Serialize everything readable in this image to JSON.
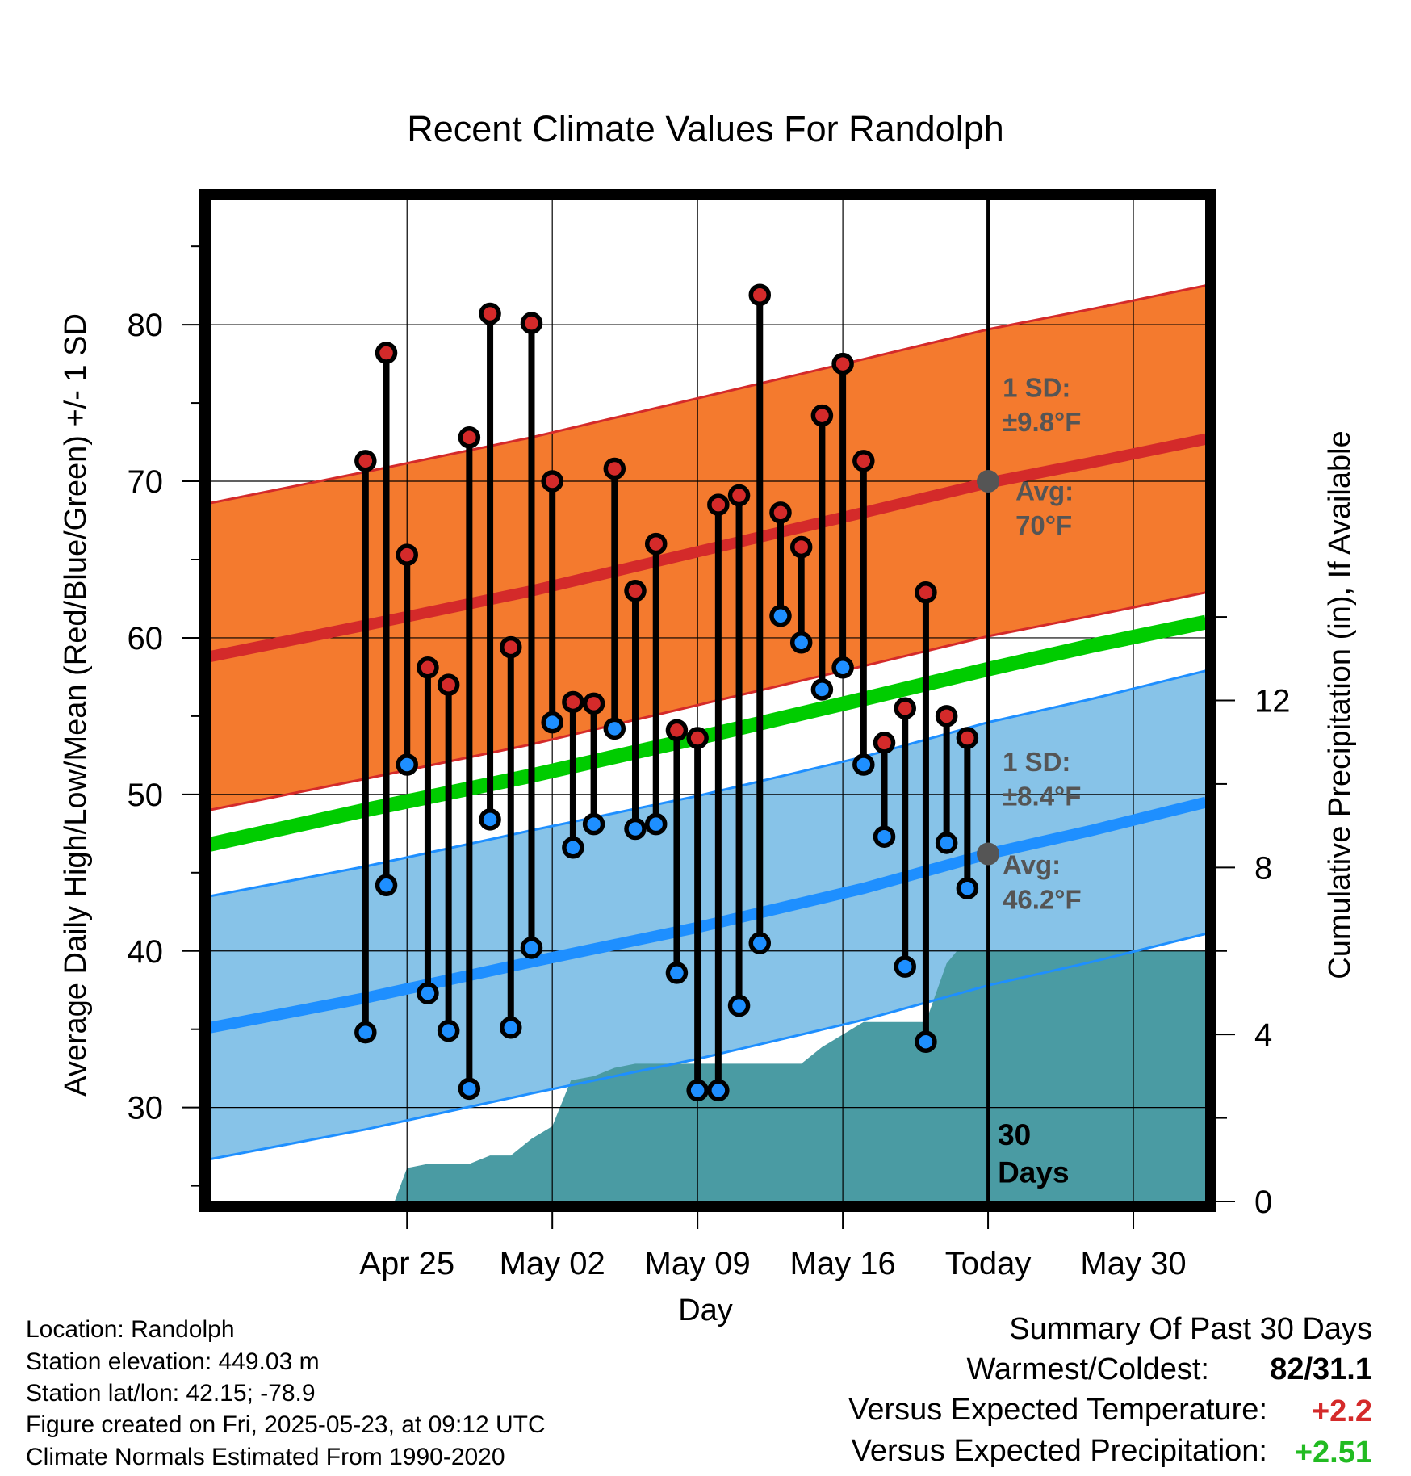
{
  "chart_data": {
    "type": "line",
    "title": "Recent Climate Values For Randolph",
    "xlabel": "Day",
    "ylabel": "Average Daily High/Low/Mean (Red/Blue/Green) +/- 1 SD",
    "y2label": "Cumulative Precipitation (in), If Available",
    "ylim": [
      24,
      88
    ],
    "y2lim": [
      0,
      24
    ],
    "xlim": [
      -37.5,
      10.5
    ],
    "grid": true,
    "x_ticks": [
      {
        "day": -28,
        "label": "Apr 25"
      },
      {
        "day": -21,
        "label": "May 02"
      },
      {
        "day": -14,
        "label": "May 09"
      },
      {
        "day": -7,
        "label": "May 16"
      },
      {
        "day": 0,
        "label": "Today"
      },
      {
        "day": 7,
        "label": "May 30"
      }
    ],
    "y_ticks": [
      30,
      40,
      50,
      60,
      70,
      80
    ],
    "y2_ticks": [
      0,
      4,
      8,
      12
    ],
    "colors": {
      "high_band": "#f47a2e",
      "high_line": "#d42a2a",
      "high_edge": "#d42a2a",
      "low_band": "#87c3e8",
      "low_line": "#1e8fff",
      "low_edge": "#1e8fff",
      "mean_line": "#00cc00",
      "precip": "#4a9ba3",
      "avg_marker": "#555555",
      "high_dot": "#d42a2a",
      "low_dot": "#1e8fff"
    },
    "normal_high": {
      "x": [
        -37.5,
        -30,
        -22,
        -14,
        -6,
        0,
        5,
        10.5
      ],
      "values": [
        58.8,
        60.8,
        63.0,
        65.5,
        68.0,
        69.9,
        71.2,
        72.7
      ]
    },
    "normal_low": {
      "x": [
        -37.5,
        -30,
        -22,
        -14,
        -6,
        0,
        5,
        10.5
      ],
      "values": [
        35.1,
        37.0,
        39.3,
        41.5,
        44.0,
        46.2,
        47.7,
        49.5
      ]
    },
    "normal_mean": {
      "x": [
        -37.5,
        -30,
        -22,
        -14,
        -6,
        0,
        5,
        10.5
      ],
      "values": [
        46.8,
        49.0,
        51.2,
        53.6,
        56.1,
        58.0,
        59.5,
        61.0
      ]
    },
    "high_sd": 9.8,
    "low_sd": 8.4,
    "daily": {
      "days": [
        -30,
        -29,
        -28,
        -27,
        -26,
        -25,
        -24,
        -23,
        -22,
        -21,
        -20,
        -19,
        -18,
        -17,
        -16,
        -15,
        -14,
        -13,
        -12,
        -11,
        -10,
        -9,
        -8,
        -7,
        -6,
        -5,
        -4,
        -3,
        -2,
        -1
      ],
      "high": [
        71.3,
        78.2,
        65.3,
        58.1,
        57.0,
        72.8,
        80.7,
        59.4,
        80.1,
        70.0,
        55.9,
        55.8,
        70.8,
        63.0,
        66.0,
        54.1,
        53.6,
        68.5,
        69.1,
        81.9,
        68.0,
        65.8,
        74.2,
        77.5,
        71.3,
        53.3,
        55.5,
        62.9,
        55.0,
        53.6
      ],
      "low": [
        34.8,
        44.2,
        51.9,
        37.3,
        34.9,
        31.2,
        48.4,
        35.1,
        40.2,
        54.6,
        46.6,
        48.1,
        54.2,
        47.8,
        48.1,
        38.6,
        31.1,
        31.1,
        36.5,
        40.5,
        61.4,
        59.7,
        56.7,
        58.1,
        51.9,
        47.3,
        39.0,
        34.2,
        46.9,
        44.0
      ]
    },
    "precip": {
      "x": [
        -30,
        -28.6,
        -28,
        -27,
        -26,
        -25,
        -24,
        -23,
        -22,
        -21,
        -20.1,
        -19,
        -18,
        -17,
        -16,
        -15,
        -14,
        -13,
        -12,
        -11,
        -10,
        -9,
        -8,
        -7,
        -6,
        -5,
        -4,
        -3,
        -2,
        -1.5,
        0,
        10.5
      ],
      "values": [
        0,
        0,
        0.8,
        0.9,
        0.9,
        0.9,
        1.1,
        1.1,
        1.5,
        1.8,
        2.9,
        3.0,
        3.2,
        3.3,
        3.3,
        3.3,
        3.3,
        3.3,
        3.3,
        3.3,
        3.3,
        3.3,
        3.7,
        4.0,
        4.3,
        4.3,
        4.3,
        4.3,
        5.7,
        6.0,
        6.0,
        6.0
      ]
    },
    "annotations": {
      "high_sd_line1": "1 SD:",
      "high_sd_line2": "±9.8°F",
      "high_avg_line1": "Avg:",
      "high_avg_line2": "70°F",
      "low_sd_line1": "1 SD:",
      "low_sd_line2": "±8.4°F",
      "low_avg_line1": "Avg:",
      "low_avg_line2": "46.2°F",
      "days_line1": "30",
      "days_line2": "Days",
      "high_avg_value": 70,
      "low_avg_value": 46.2
    }
  },
  "info": {
    "location": "Location: Randolph",
    "elevation": "Station elevation: 449.03 m",
    "latlon": "Station lat/lon: 42.15; -78.9",
    "created": "Figure created on Fri, 2025-05-23, at 09:12 UTC",
    "normals": "Climate Normals Estimated From 1990-2020"
  },
  "summary": {
    "heading": "Summary Of Past 30 Days",
    "warmest_label": "Warmest/Coldest:",
    "warmest_value": "82/31.1",
    "temp_label": "Versus Expected Temperature:",
    "temp_value": "+2.2",
    "temp_color": "#d42a2a",
    "precip_label": "Versus Expected Precipitation:",
    "precip_value": "+2.51",
    "precip_color": "#22bb22"
  }
}
